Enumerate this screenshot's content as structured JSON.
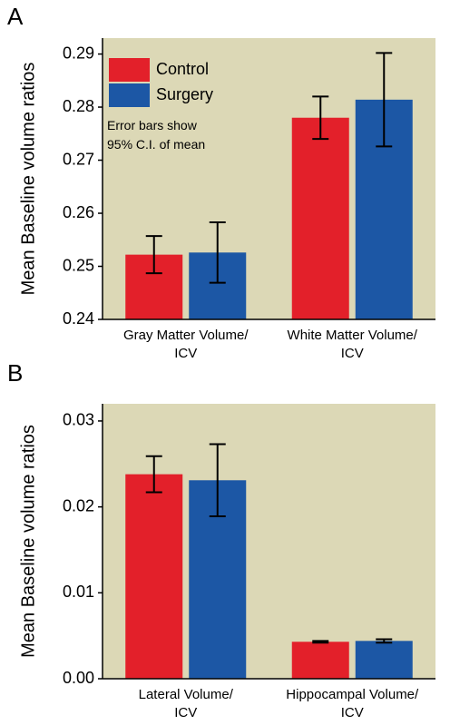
{
  "chart_data": [
    {
      "type": "bar",
      "panel_label": "A",
      "ylabel": "Mean Baseline volume ratios",
      "categories": [
        "Gray Matter Volume/\nICV",
        "White Matter Volume/\nICV"
      ],
      "series": [
        {
          "name": "Control",
          "color": "#e3202a",
          "values": [
            0.2522,
            0.278
          ],
          "errors": [
            0.0035,
            0.004
          ]
        },
        {
          "name": "Surgery",
          "color": "#1c57a5",
          "values": [
            0.2526,
            0.2814
          ],
          "errors": [
            0.0057,
            0.0088
          ]
        }
      ],
      "annotation": "Error bars show\n95% C.I. of mean",
      "ylim": [
        0.24,
        0.293
      ],
      "yticks": [
        0.24,
        0.25,
        0.26,
        0.27,
        0.28,
        0.29
      ],
      "legend": "upper left",
      "background": "#dcd8b6"
    },
    {
      "type": "bar",
      "panel_label": "B",
      "ylabel": "Mean Baseline volume ratios",
      "categories": [
        "Lateral Volume/\nICV",
        "Hippocampal Volume/\nICV"
      ],
      "series": [
        {
          "color": "#e3202a",
          "values": [
            0.0238,
            0.0043
          ],
          "errors": [
            0.0021,
            0.0001
          ]
        },
        {
          "color": "#1c57a5",
          "values": [
            0.0231,
            0.0044
          ],
          "errors": [
            0.0042,
            0.0002
          ]
        }
      ],
      "ylim": [
        0,
        0.032
      ],
      "yticks": [
        {
          "value": 0,
          "label": "0.00"
        },
        0.01,
        0.02,
        0.03
      ],
      "background": "#dcd8b6"
    }
  ]
}
